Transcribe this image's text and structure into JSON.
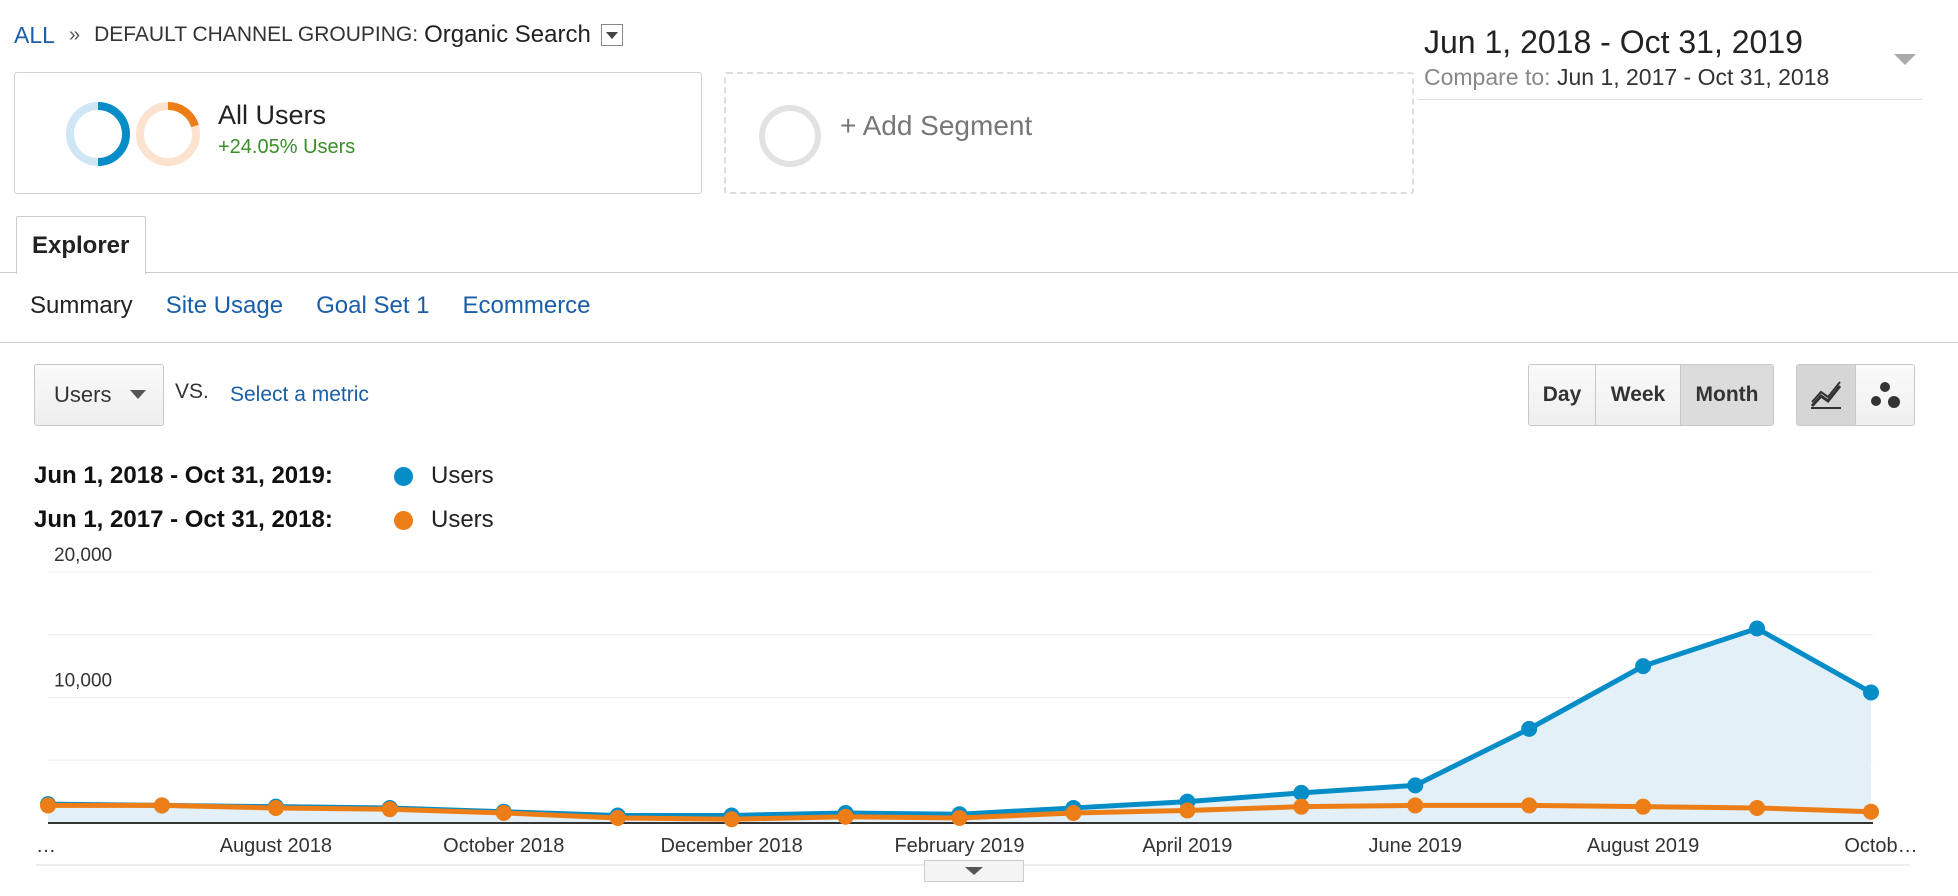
{
  "breadcrumb": {
    "all_label": "ALL",
    "separator": "»",
    "group_label": "DEFAULT CHANNEL GROUPING:",
    "group_value": "Organic Search"
  },
  "date_range": {
    "main": "Jun 1, 2018 - Oct 31, 2019",
    "compare_label": "Compare to:",
    "compare_value": "Jun 1, 2017 - Oct 31, 2018"
  },
  "segments": {
    "primary": {
      "title": "All Users",
      "change": "+24.05% Users"
    },
    "add_label": "+ Add Segment"
  },
  "tabs": {
    "active": "Explorer"
  },
  "subtabs": [
    {
      "label": "Summary",
      "active": true
    },
    {
      "label": "Site Usage",
      "active": false
    },
    {
      "label": "Goal Set 1",
      "active": false
    },
    {
      "label": "Ecommerce",
      "active": false
    }
  ],
  "metric_selector": {
    "metric": "Users",
    "vs_label": "VS.",
    "select_label": "Select a metric"
  },
  "granularity": {
    "options": [
      "Day",
      "Week",
      "Month"
    ],
    "selected": "Month"
  },
  "chart_type_options": [
    "line-chart-icon",
    "motion-chart-icon"
  ],
  "legend": [
    {
      "range": "Jun 1, 2018 - Oct 31, 2019:",
      "metric": "Users",
      "color": "#058dc7"
    },
    {
      "range": "Jun 1, 2017 - Oct 31, 2018:",
      "metric": "Users",
      "color": "#ed7e17"
    }
  ],
  "colors": {
    "primary": "#058dc7",
    "compare": "#ed7e17",
    "area_fill": "#e3f0f8",
    "link": "#1a5ea8",
    "positive": "#3a8f27"
  },
  "chart_data": {
    "type": "line",
    "x": [
      "…",
      "",
      "August 2018",
      "",
      "October 2018",
      "",
      "December 2018",
      "",
      "February 2019",
      "",
      "April 2019",
      "",
      "June 2019",
      "",
      "August 2019",
      "",
      "Octob…"
    ],
    "series": [
      {
        "name": "Users",
        "range": "Jun 1, 2018 - Oct 31, 2019",
        "values": [
          1500,
          1400,
          1300,
          1200,
          900,
          600,
          600,
          800,
          700,
          1200,
          1700,
          2400,
          3000,
          7500,
          12500,
          15500,
          10400
        ]
      },
      {
        "name": "Users",
        "range": "Jun 1, 2017 - Oct 31, 2018",
        "values": [
          1400,
          1400,
          1200,
          1100,
          800,
          400,
          300,
          500,
          400,
          800,
          1000,
          1300,
          1400,
          1400,
          1300,
          1200,
          900
        ]
      }
    ],
    "y_ticks": [
      "20,000",
      "10,000"
    ],
    "ylim": [
      0,
      20000
    ],
    "area_fill_series": 0,
    "grid": true
  }
}
